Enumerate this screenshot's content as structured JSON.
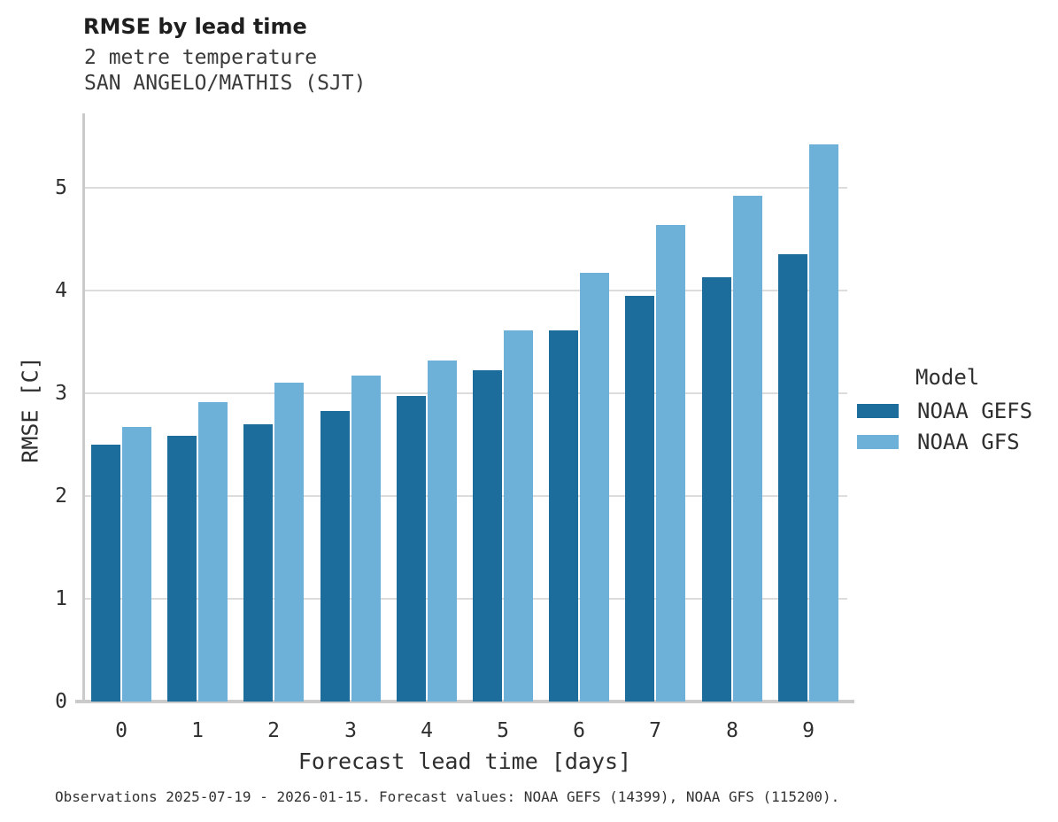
{
  "header": {
    "title": "RMSE by lead time",
    "subtitle_line1": "2 metre temperature",
    "subtitle_line2": "SAN ANGELO/MATHIS (SJT)"
  },
  "chart_data": {
    "type": "bar",
    "title": "RMSE by lead time",
    "subtitle": [
      "2 metre temperature",
      "SAN ANGELO/MATHIS (SJT)"
    ],
    "categories": [
      "0",
      "1",
      "2",
      "3",
      "4",
      "5",
      "6",
      "7",
      "8",
      "9"
    ],
    "series": [
      {
        "name": "NOAA GEFS",
        "color": "#1c6d9c",
        "values": [
          2.5,
          2.59,
          2.7,
          2.83,
          2.97,
          3.22,
          3.61,
          3.95,
          4.13,
          4.35
        ]
      },
      {
        "name": "NOAA GFS",
        "color": "#6eb1d8",
        "values": [
          2.67,
          2.91,
          3.1,
          3.17,
          3.32,
          3.61,
          4.17,
          4.64,
          4.92,
          5.42
        ]
      }
    ],
    "xlabel": "Forecast lead time [days]",
    "ylabel": "RMSE [C]",
    "ylim": [
      0,
      5.72
    ],
    "yticks": [
      0,
      1,
      2,
      3,
      4,
      5
    ],
    "grid": "horizontal",
    "legend_position": "right",
    "legend_title": "Model"
  },
  "legend": {
    "title": "Model",
    "entries": [
      {
        "label": "NOAA GEFS",
        "color": "#1c6d9c"
      },
      {
        "label": "NOAA GFS",
        "color": "#6eb1d8"
      }
    ]
  },
  "footer": {
    "caption": "Observations 2025-07-19 - 2026-01-15. Forecast values: NOAA GEFS (14399), NOAA GFS (115200)."
  }
}
